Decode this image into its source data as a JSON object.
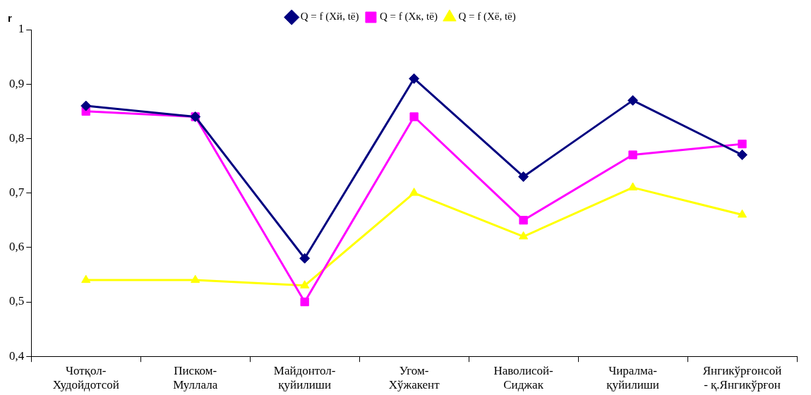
{
  "chart_data": {
    "type": "line",
    "ylabel": "r",
    "categories": [
      "Чотқол-\nХудойдотсой",
      "Писком-\nМуллала",
      "Майдонтол-\nқуйилиши",
      "Угом-\nХўжакент",
      "Наволисой-\nСиджак",
      "Чиралма-\nқуйилиши",
      "Янгикўрғонсой\n- қ.Янгикўрғон"
    ],
    "series": [
      {
        "name": "Q = f (Хй, tё)",
        "color": "#000080",
        "marker": "diamond",
        "values": [
          0.86,
          0.84,
          0.58,
          0.91,
          0.73,
          0.87,
          0.77
        ]
      },
      {
        "name": "Q = f (Хк, tё)",
        "color": "#ff00ff",
        "marker": "square",
        "values": [
          0.85,
          0.84,
          0.5,
          0.84,
          0.65,
          0.77,
          0.79
        ]
      },
      {
        "name": "Q = f (Хё, tё)",
        "color": "#ffff00",
        "marker": "triangle",
        "values": [
          0.54,
          0.54,
          0.53,
          0.7,
          0.62,
          0.71,
          0.66
        ]
      }
    ],
    "ylim": [
      0.4,
      1
    ],
    "yticks": [
      {
        "value": 0.4,
        "label": "0,4"
      },
      {
        "value": 0.5,
        "label": "0,5"
      },
      {
        "value": 0.6,
        "label": "0,6"
      },
      {
        "value": 0.7,
        "label": "0,7"
      },
      {
        "value": 0.8,
        "label": "0,8"
      },
      {
        "value": 0.9,
        "label": "0,9"
      },
      {
        "value": 1,
        "label": "1"
      }
    ],
    "grid": false,
    "legend": "top",
    "line_style": "solid"
  }
}
